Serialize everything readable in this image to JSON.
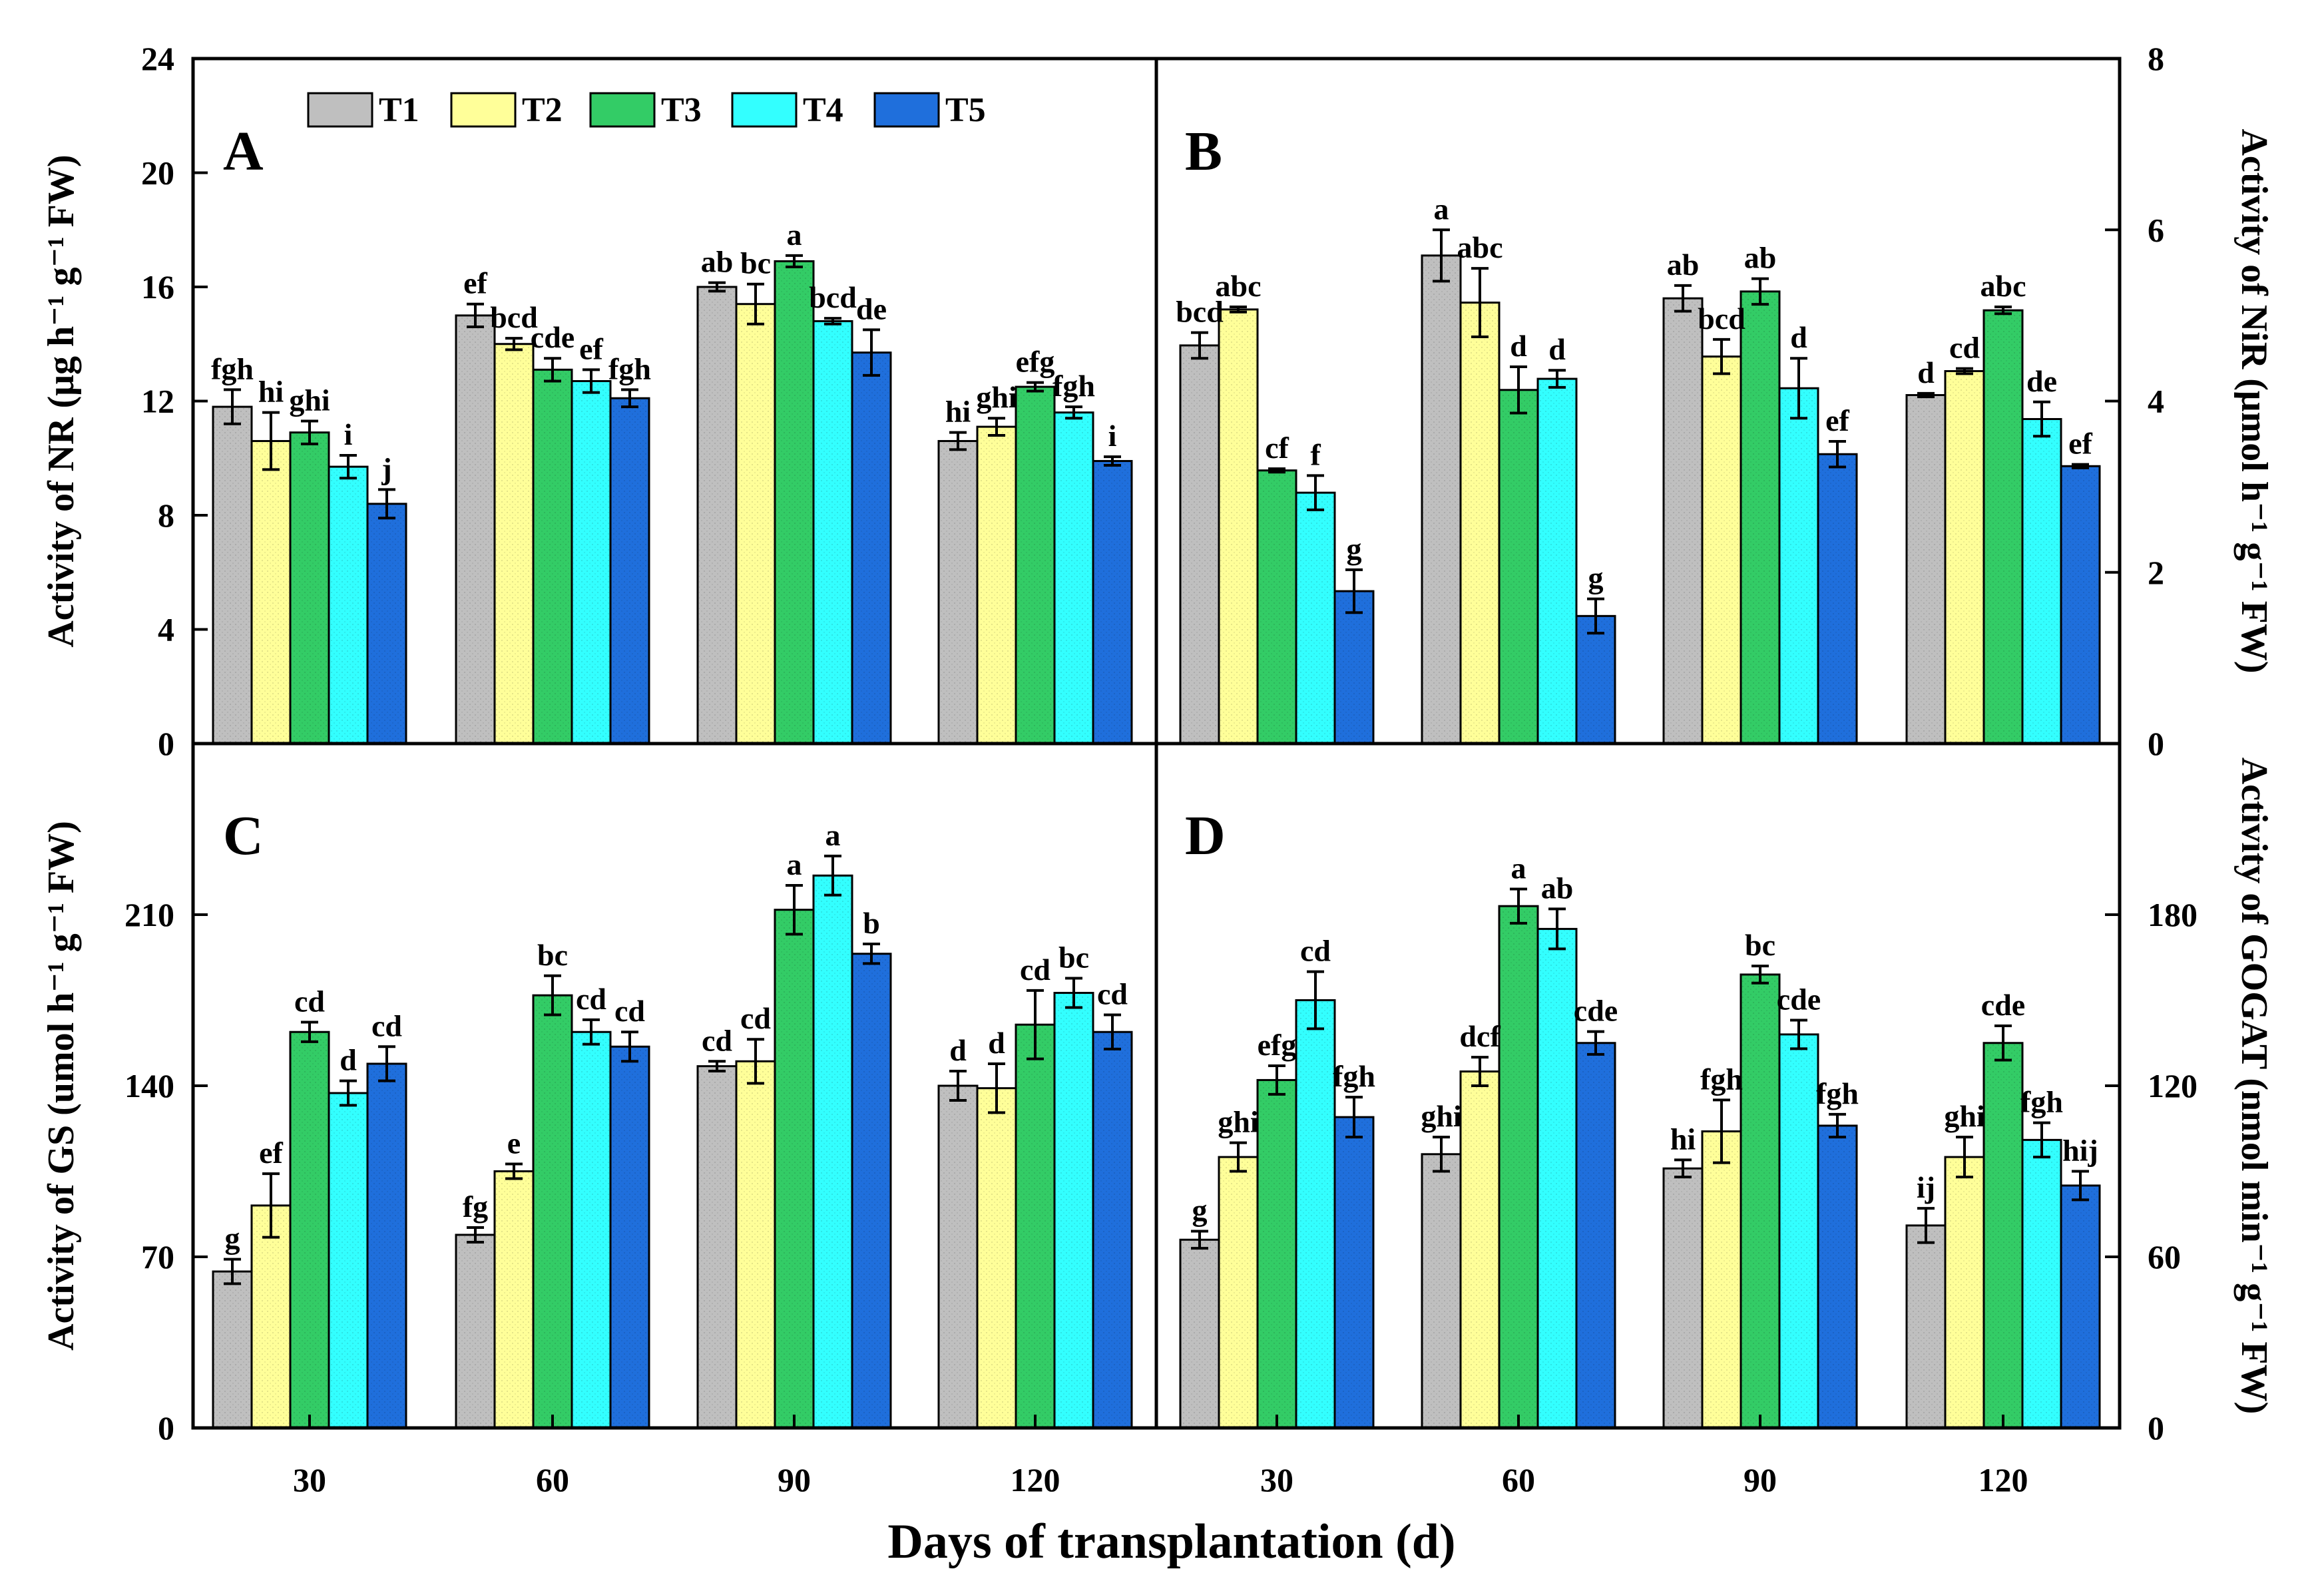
{
  "figure": {
    "xlabel": "Days of transplantation (d)",
    "categories": [
      "30",
      "60",
      "90",
      "120"
    ],
    "legend": [
      {
        "name": "T1",
        "color": "#bfbfbf"
      },
      {
        "name": "T2",
        "color": "#ffff99"
      },
      {
        "name": "T3",
        "color": "#33cc66"
      },
      {
        "name": "T4",
        "color": "#33ffff"
      },
      {
        "name": "T5",
        "color": "#1f6fdc"
      }
    ]
  },
  "chart_data": [
    {
      "panel": "A",
      "type": "bar",
      "ylabel_html": "Activity of NR (μg h",
      "ylabel": "Activity of NR (μg h⁻¹ g⁻¹ FW)",
      "ylim": [
        0,
        24
      ],
      "yticks": [
        "0",
        "4",
        "8",
        "12",
        "16",
        "20",
        "24"
      ],
      "categories": [
        "30",
        "60",
        "90",
        "120"
      ],
      "series": [
        {
          "name": "T1",
          "values": [
            11.8,
            15.0,
            16.0,
            10.6
          ],
          "errors": [
            0.6,
            0.4,
            0.15,
            0.3
          ],
          "labels": [
            "fgh",
            "ef",
            "ab",
            "hi"
          ]
        },
        {
          "name": "T2",
          "values": [
            10.6,
            14.0,
            15.4,
            11.1
          ],
          "errors": [
            1.0,
            0.2,
            0.7,
            0.3
          ],
          "labels": [
            "hi",
            "bcd",
            "bc",
            "ghi"
          ]
        },
        {
          "name": "T3",
          "values": [
            10.9,
            13.1,
            16.9,
            12.5
          ],
          "errors": [
            0.4,
            0.4,
            0.2,
            0.15
          ],
          "labels": [
            "ghi",
            "cde",
            "a",
            "efg"
          ]
        },
        {
          "name": "T4",
          "values": [
            9.7,
            12.7,
            14.8,
            11.6
          ],
          "errors": [
            0.4,
            0.4,
            0.1,
            0.2
          ],
          "labels": [
            "i",
            "ef",
            "bcd",
            "fgh"
          ]
        },
        {
          "name": "T5",
          "values": [
            8.4,
            12.1,
            13.7,
            9.9
          ],
          "errors": [
            0.5,
            0.3,
            0.8,
            0.15
          ],
          "labels": [
            "j",
            "fgh",
            "de",
            "i"
          ]
        }
      ]
    },
    {
      "panel": "B",
      "type": "bar",
      "ylabel": "Activity of NiR (μmol h⁻¹ g⁻¹ FW)",
      "ylim": [
        0,
        8
      ],
      "yticks": [
        "0",
        "2",
        "4",
        "6",
        "8"
      ],
      "axis_side": "right",
      "categories": [
        "30",
        "60",
        "90",
        "120"
      ],
      "series": [
        {
          "name": "T1",
          "values": [
            4.65,
            5.7,
            5.2,
            4.07
          ],
          "errors": [
            0.15,
            0.3,
            0.15,
            0.02
          ],
          "labels": [
            "bcd",
            "a",
            "ab",
            "d"
          ]
        },
        {
          "name": "T2",
          "values": [
            5.07,
            5.15,
            4.52,
            4.35
          ],
          "errors": [
            0.03,
            0.4,
            0.2,
            0.03
          ],
          "labels": [
            "abc",
            "abc",
            "bcd",
            "cd"
          ]
        },
        {
          "name": "T3",
          "values": [
            3.19,
            4.13,
            5.28,
            5.06
          ],
          "errors": [
            0.02,
            0.27,
            0.15,
            0.04
          ],
          "labels": [
            "cf",
            "d",
            "ab",
            "abc"
          ]
        },
        {
          "name": "T4",
          "values": [
            2.93,
            4.26,
            4.15,
            3.79
          ],
          "errors": [
            0.2,
            0.1,
            0.35,
            0.2
          ],
          "labels": [
            "f",
            "d",
            "d",
            "de"
          ]
        },
        {
          "name": "T5",
          "values": [
            1.78,
            1.49,
            3.38,
            3.24
          ],
          "errors": [
            0.25,
            0.2,
            0.15,
            0.02
          ],
          "labels": [
            "g",
            "g",
            "ef",
            "ef"
          ]
        }
      ]
    },
    {
      "panel": "C",
      "type": "bar",
      "ylabel": "Activity of GS (umol h⁻¹ g⁻¹ FW)",
      "ylim": [
        0,
        280
      ],
      "yticks": [
        "0",
        "70",
        "140",
        "210"
      ],
      "categories": [
        "30",
        "60",
        "90",
        "120"
      ],
      "series": [
        {
          "name": "T1",
          "values": [
            64,
            79,
            148,
            140
          ],
          "errors": [
            5,
            3,
            2,
            6
          ],
          "labels": [
            "g",
            "fg",
            "cd",
            "d"
          ]
        },
        {
          "name": "T2",
          "values": [
            91,
            105,
            150,
            139
          ],
          "errors": [
            13,
            3,
            9,
            10
          ],
          "labels": [
            "ef",
            "e",
            "cd",
            "d"
          ]
        },
        {
          "name": "T3",
          "values": [
            162,
            177,
            212,
            165
          ],
          "errors": [
            4,
            8,
            10,
            14
          ],
          "labels": [
            "cd",
            "bc",
            "a",
            "cd"
          ]
        },
        {
          "name": "T4",
          "values": [
            137,
            162,
            226,
            178
          ],
          "errors": [
            5,
            5,
            8,
            6
          ],
          "labels": [
            "d",
            "cd",
            "a",
            "bc"
          ]
        },
        {
          "name": "T5",
          "values": [
            149,
            156,
            194,
            162
          ],
          "errors": [
            7,
            6,
            4,
            7
          ],
          "labels": [
            "cd",
            "cd",
            "b",
            "cd"
          ]
        }
      ]
    },
    {
      "panel": "D",
      "type": "bar",
      "ylabel": "Activity of GOGAT (nmol min⁻¹ g⁻¹ FW)",
      "ylim": [
        0,
        240
      ],
      "yticks": [
        "0",
        "60",
        "120",
        "180"
      ],
      "axis_side": "right",
      "categories": [
        "30",
        "60",
        "90",
        "120"
      ],
      "series": [
        {
          "name": "T1",
          "values": [
            66,
            96,
            91,
            71
          ],
          "errors": [
            3,
            6,
            3,
            6
          ],
          "labels": [
            "g",
            "ghi",
            "hi",
            "ij"
          ]
        },
        {
          "name": "T2",
          "values": [
            95,
            125,
            104,
            95
          ],
          "errors": [
            5,
            5,
            11,
            7
          ],
          "labels": [
            "ghi",
            "dcf",
            "fgh",
            "ghi"
          ]
        },
        {
          "name": "T3",
          "values": [
            122,
            183,
            159,
            135
          ],
          "errors": [
            5,
            6,
            3,
            6
          ],
          "labels": [
            "efg",
            "a",
            "bc",
            "cde"
          ]
        },
        {
          "name": "T4",
          "values": [
            150,
            175,
            138,
            101
          ],
          "errors": [
            10,
            7,
            5,
            6
          ],
          "labels": [
            "cd",
            "ab",
            "cde",
            "fgh"
          ]
        },
        {
          "name": "T5",
          "values": [
            109,
            135,
            106,
            85
          ],
          "errors": [
            7,
            4,
            4,
            5
          ],
          "labels": [
            "fgh",
            "cde",
            "fgh",
            "hij"
          ]
        }
      ]
    }
  ]
}
